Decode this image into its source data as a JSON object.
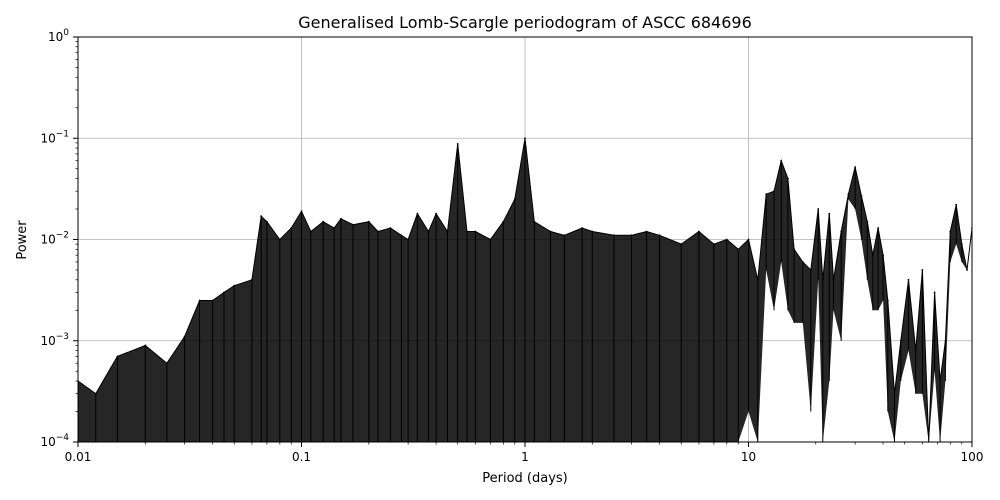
{
  "chart_data": {
    "type": "line",
    "title": "Generalised Lomb-Scargle periodogram of ASCC 684696",
    "xlabel": "Period (days)",
    "ylabel": "Power",
    "x_scale": "log",
    "y_scale": "log",
    "xlim": [
      0.01,
      100
    ],
    "ylim": [
      0.0001,
      1
    ],
    "grid": true,
    "x_ticks": [
      {
        "value": 0.01,
        "label": "0.01"
      },
      {
        "value": 0.1,
        "label": "0.1"
      },
      {
        "value": 1,
        "label": "1"
      },
      {
        "value": 10,
        "label": "10"
      },
      {
        "value": 100,
        "label": "100"
      }
    ],
    "y_ticks": [
      {
        "value": 0.0001,
        "base": "10",
        "exp": "−4"
      },
      {
        "value": 0.001,
        "base": "10",
        "exp": "−3"
      },
      {
        "value": 0.01,
        "base": "10",
        "exp": "−2"
      },
      {
        "value": 0.1,
        "base": "10",
        "exp": "−1"
      },
      {
        "value": 1,
        "base": "10",
        "exp": "0"
      }
    ],
    "series": [
      {
        "color": "#000000",
        "x": [
          0.01,
          0.012,
          0.015,
          0.02,
          0.025,
          0.03,
          0.035,
          0.04,
          0.045,
          0.05,
          0.06,
          0.066,
          0.07,
          0.08,
          0.09,
          0.1,
          0.11,
          0.125,
          0.14,
          0.15,
          0.17,
          0.2,
          0.22,
          0.25,
          0.28,
          0.3,
          0.33,
          0.37,
          0.4,
          0.45,
          0.5,
          0.55,
          0.6,
          0.7,
          0.8,
          0.9,
          1.0,
          1.1,
          1.3,
          1.5,
          1.8,
          2.0,
          2.5,
          3.0,
          3.5,
          4.0,
          5.0,
          6.0,
          7.0,
          8.0,
          9.0,
          10.0,
          11.0,
          12.0,
          13.0,
          14.0,
          15.0,
          16.0,
          17.5,
          19.0,
          20.5,
          21.5,
          23.0,
          24.0,
          26.0,
          28.0,
          30.0,
          32.0,
          34.0,
          36.0,
          38.0,
          40.0,
          42.0,
          45.0,
          48.0,
          52.0,
          56.0,
          60.0,
          64.0,
          68.0,
          72.0,
          76.0,
          80.0,
          85.0,
          90.0,
          95.0,
          100.0
        ],
        "peak": [
          0.0004,
          0.0003,
          0.0007,
          0.0009,
          0.0006,
          0.0011,
          0.0025,
          0.0025,
          0.003,
          0.0035,
          0.004,
          0.017,
          0.015,
          0.01,
          0.013,
          0.019,
          0.012,
          0.015,
          0.013,
          0.016,
          0.014,
          0.015,
          0.012,
          0.013,
          0.011,
          0.01,
          0.018,
          0.012,
          0.018,
          0.012,
          0.088,
          0.012,
          0.012,
          0.01,
          0.015,
          0.025,
          0.1,
          0.015,
          0.012,
          0.011,
          0.013,
          0.012,
          0.011,
          0.011,
          0.012,
          0.011,
          0.009,
          0.012,
          0.009,
          0.01,
          0.008,
          0.01,
          0.004,
          0.028,
          0.03,
          0.06,
          0.04,
          0.008,
          0.006,
          0.005,
          0.02,
          0.004,
          0.018,
          0.004,
          0.012,
          0.028,
          0.052,
          0.027,
          0.015,
          0.007,
          0.013,
          0.007,
          0.0025,
          0.0003,
          0.001,
          0.004,
          0.0008,
          0.005,
          0.0001,
          0.003,
          0.0004,
          0.001,
          0.012,
          0.022,
          0.009,
          0.005,
          0.013
        ],
        "floor": [
          0.0001,
          0.0001,
          0.0001,
          0.0001,
          0.0001,
          0.0001,
          0.0001,
          0.0001,
          0.0001,
          0.0001,
          0.0001,
          0.0001,
          0.0001,
          0.0001,
          0.0001,
          0.0001,
          0.0001,
          0.0001,
          0.0001,
          0.0001,
          0.0001,
          0.0001,
          0.0001,
          0.0001,
          0.0001,
          0.0001,
          0.0001,
          0.0001,
          0.0001,
          0.0001,
          0.0001,
          0.0001,
          0.0001,
          0.0001,
          0.0001,
          0.0001,
          0.0001,
          0.0001,
          0.0001,
          0.0001,
          0.0001,
          0.0001,
          0.0001,
          0.0001,
          0.0001,
          0.0001,
          0.0001,
          0.0001,
          0.0001,
          0.0001,
          0.0001,
          0.0002,
          0.0001,
          0.005,
          0.002,
          0.006,
          0.002,
          0.0015,
          0.0015,
          0.0002,
          0.004,
          0.0001,
          0.0004,
          0.002,
          0.001,
          0.025,
          0.02,
          0.01,
          0.004,
          0.002,
          0.002,
          0.0025,
          0.0002,
          0.0001,
          0.0004,
          0.0008,
          0.0003,
          0.0003,
          0.0001,
          0.0005,
          0.0001,
          0.0004,
          0.006,
          0.009,
          0.006,
          0.005,
          0.013
        ]
      }
    ]
  }
}
